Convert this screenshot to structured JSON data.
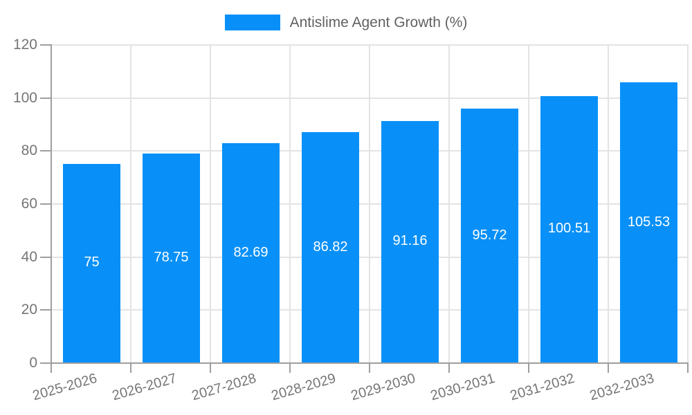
{
  "legend": {
    "label": "Antislime Agent Growth (%)"
  },
  "colors": {
    "bar": "#0890f8",
    "grid": "#e3e3e3",
    "axis": "#9e9e9e",
    "tick_text": "#757575",
    "legend_text": "#616161",
    "value_label_text": "#ffffff",
    "background": "#ffffff"
  },
  "chart_data": {
    "type": "bar",
    "title": "Antislime Agent Growth (%)",
    "categories": [
      "2025-2026",
      "2026-2027",
      "2027-2028",
      "2028-2029",
      "2029-2030",
      "2030-2031",
      "2031-2032",
      "2032-2033"
    ],
    "values": [
      75,
      78.75,
      82.69,
      86.82,
      91.16,
      95.72,
      100.51,
      105.53
    ],
    "value_labels": [
      "75",
      "78.75",
      "82.69",
      "86.82",
      "91.16",
      "95.72",
      "100.51",
      "105.53"
    ],
    "xlabel": "",
    "ylabel": "",
    "ylim": [
      0,
      120
    ],
    "yticks": [
      0,
      20,
      40,
      60,
      80,
      100,
      120
    ],
    "grid": "both",
    "legend_position": "top",
    "bar_label_position": "center-inside",
    "series": [
      {
        "name": "Antislime Agent Growth (%)",
        "values": [
          75,
          78.75,
          82.69,
          86.82,
          91.16,
          95.72,
          100.51,
          105.53
        ]
      }
    ]
  }
}
